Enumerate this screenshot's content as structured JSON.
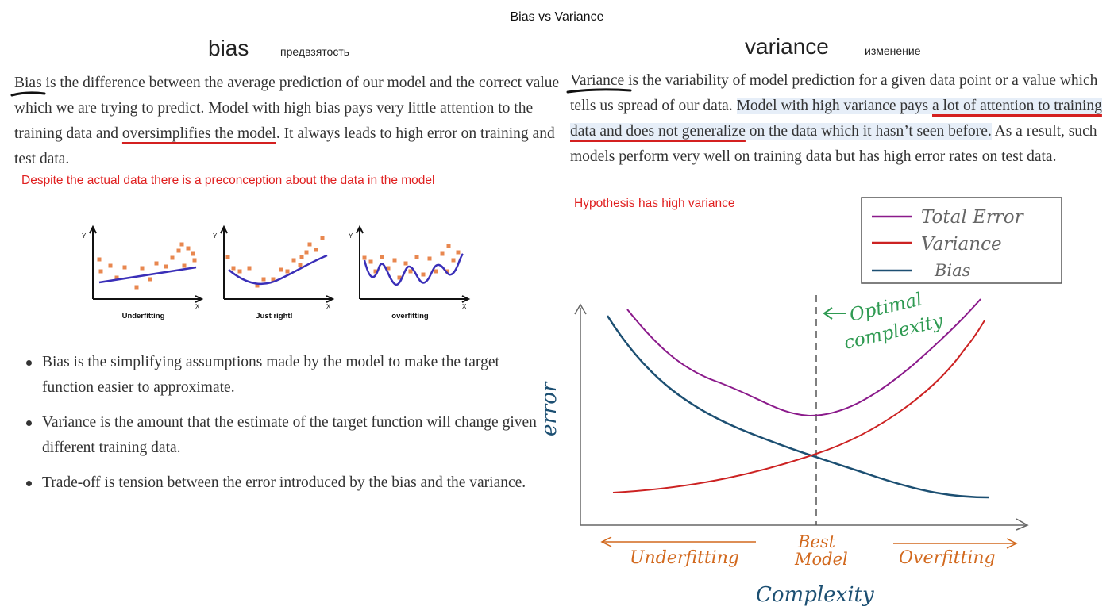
{
  "page": {
    "title": "Bias vs Variance"
  },
  "bias": {
    "heading": "bias",
    "translation": "предвзятость",
    "term": "Bias",
    "p1": " is the difference between the average prediction of our model and the correct value which we are trying to predict. Model with high bias pays very little attention to the training data and ",
    "p_emph": "oversimplifies the model",
    "p2": ". It always leads to high error on training and test data.",
    "note": "Despite the actual data there is a preconception about the  data in the model"
  },
  "fit_plots": {
    "axis_y": "Y",
    "axis_x": "X",
    "labels": [
      "Underfitting",
      "Just right!",
      "overfitting"
    ]
  },
  "bullets": [
    "Bias is the simplifying assumptions made by the model to make the target function easier to approximate.",
    "Variance is the amount that the estimate of the target function will change given different training data.",
    "Trade-off is tension between the error introduced by the bias and the variance."
  ],
  "variance": {
    "heading": "variance",
    "translation": "изменение",
    "term": "Variance",
    "p1": " is the variability of model prediction for a given data point or a value which tells us spread of our data. ",
    "p_hl1": "Model with high variance pays ",
    "p_hl_ul": "a lot of attention to training data and does not generalize",
    "p_hl2": " on the data which it hasn’t seen before.",
    "p2": " As a result, such models perform very well on training data but has high error rates on test data.",
    "note": "Hypothesis has high variance"
  },
  "tradeoff_chart": {
    "legend": [
      "Total Error",
      "Variance",
      "Bias"
    ],
    "optimal_line1": "Optimal",
    "optimal_line2": "complexity",
    "ylabel": "error",
    "xlabel": "Complexity",
    "best_line1": "Best",
    "best_line2": "Model",
    "left_label": "Underfitting",
    "right_label": "Overfitting",
    "colors": {
      "total": "#8b1a8b",
      "variance": "#cc2222",
      "bias": "#1c4f72",
      "optimal": "#2f9a52",
      "axis_text": "#d2691e"
    }
  }
}
